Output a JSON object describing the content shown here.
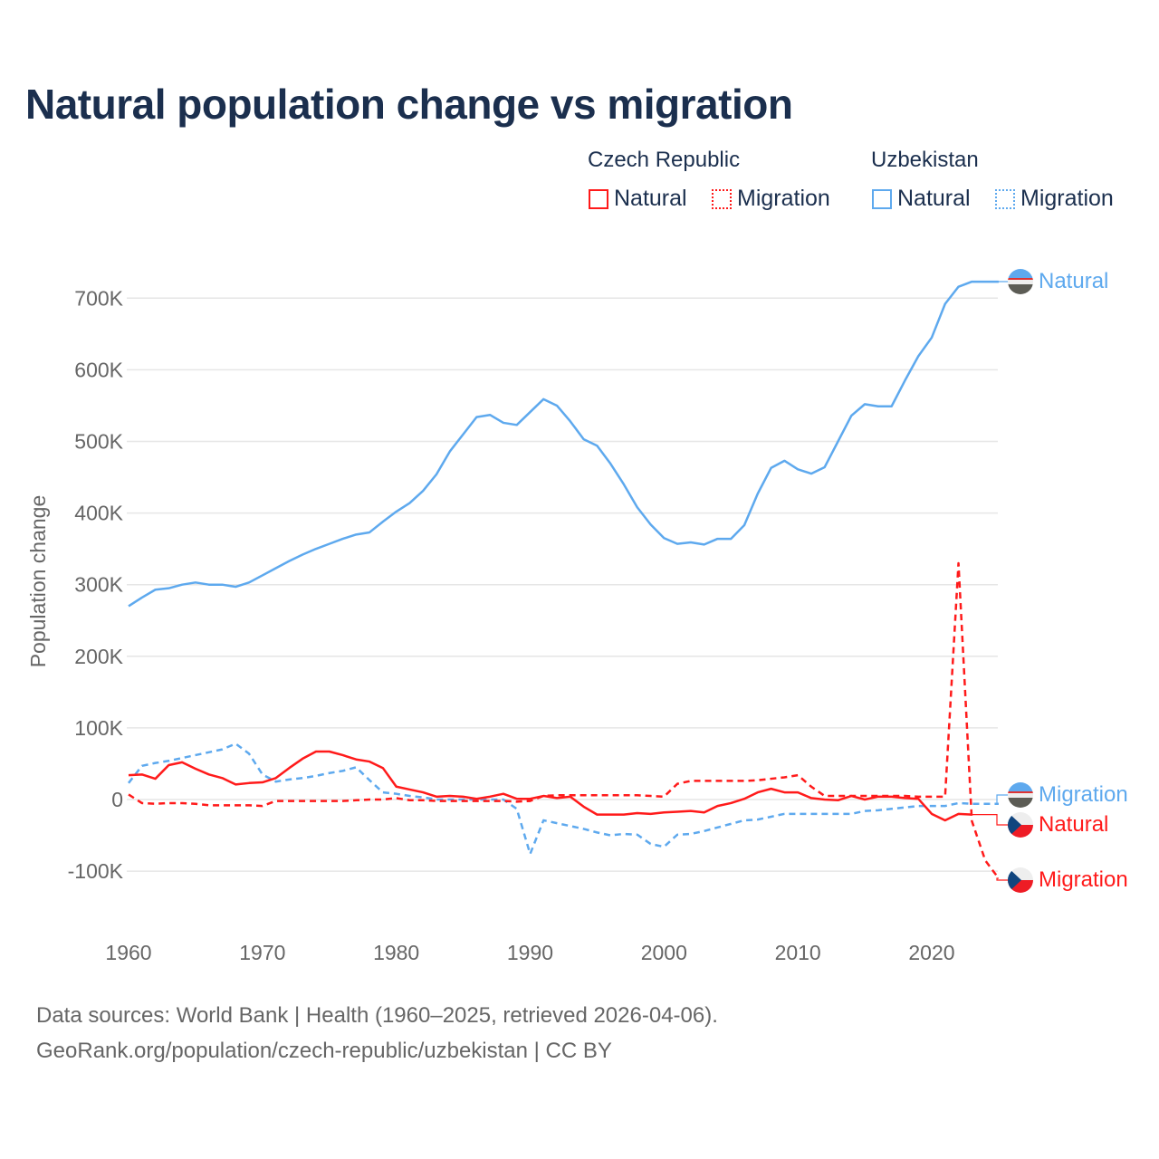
{
  "title": "Natural population change vs migration",
  "legend": {
    "groups": [
      {
        "name": "Czech Republic",
        "items": [
          {
            "label": "Natural",
            "style": "solid"
          },
          {
            "label": "Migration",
            "style": "dotted"
          }
        ],
        "color": "#ff1a1a"
      },
      {
        "name": "Uzbekistan",
        "items": [
          {
            "label": "Natural",
            "style": "solid"
          },
          {
            "label": "Migration",
            "style": "dotted"
          }
        ],
        "color": "#5ea9ee"
      }
    ]
  },
  "footer": {
    "line1": "Data sources: World Bank | Health (1960–2025, retrieved 2026-04-06).",
    "line2": "GeoRank.org/population/czech-republic/uzbekistan | CC BY"
  },
  "chart_data": {
    "type": "line",
    "title": "Natural population change vs migration",
    "xlabel": "",
    "ylabel": "Population change",
    "xlim": [
      1960,
      2025
    ],
    "ylim": [
      -100000,
      700000
    ],
    "x_ticks": [
      "1960",
      "1970",
      "1980",
      "1990",
      "2000",
      "2010",
      "2020"
    ],
    "y_ticks": [
      {
        "v": -100000,
        "label": "-100K"
      },
      {
        "v": 0,
        "label": "0"
      },
      {
        "v": 100000,
        "label": "100K"
      },
      {
        "v": 200000,
        "label": "200K"
      },
      {
        "v": 300000,
        "label": "300K"
      },
      {
        "v": 400000,
        "label": "400K"
      },
      {
        "v": 500000,
        "label": "500K"
      },
      {
        "v": 600000,
        "label": "600K"
      },
      {
        "v": 700000,
        "label": "700K"
      }
    ],
    "grid": true,
    "legend_position": "top-right",
    "series": [
      {
        "name": "Uzbekistan Natural",
        "end_label": "Natural",
        "flag": "uzbekistan",
        "color": "#5ea9ee",
        "dash": "",
        "start": 1960,
        "values_k": [
          270,
          282,
          293,
          295,
          300,
          303,
          300,
          300,
          297,
          303,
          313,
          323,
          333,
          342,
          350,
          357,
          364,
          370,
          373,
          388,
          402,
          414,
          431,
          454,
          486,
          510,
          534,
          537,
          526,
          523,
          541,
          559,
          550,
          528,
          503,
          494,
          469,
          440,
          408,
          384,
          365,
          357,
          359,
          356,
          364,
          364,
          383,
          427,
          463,
          473,
          461,
          455,
          464,
          500,
          536,
          552,
          549,
          549,
          585,
          619,
          645,
          692,
          716,
          723,
          723,
          723
        ]
      },
      {
        "name": "Uzbekistan Migration",
        "end_label": "Migration",
        "flag": "uzbekistan",
        "color": "#5ea9ee",
        "dash": "7,5",
        "start": 1960,
        "values_k": [
          23,
          47,
          51,
          54,
          58,
          62,
          66,
          70,
          78,
          64,
          35,
          25,
          28,
          30,
          33,
          37,
          40,
          45,
          27,
          10,
          8,
          5,
          3,
          0,
          0,
          0,
          0,
          0,
          0,
          -13,
          -76,
          -29,
          -33,
          -37,
          -41,
          -46,
          -50,
          -48,
          -49,
          -62,
          -66,
          -49,
          -48,
          -44,
          -39,
          -34,
          -29,
          -28,
          -24,
          -20,
          -20,
          -20,
          -20,
          -20,
          -20,
          -16,
          -15,
          -13,
          -11,
          -9,
          -9,
          -9,
          -5,
          -6,
          -6,
          -6
        ]
      },
      {
        "name": "Czech Republic Natural",
        "end_label": "Natural",
        "flag": "czech",
        "color": "#ff1a1a",
        "dash": "",
        "start": 1960,
        "values_k": [
          34,
          35,
          29,
          48,
          52,
          43,
          35,
          30,
          21,
          23,
          24,
          30,
          44,
          57,
          67,
          67,
          62,
          56,
          53,
          44,
          18,
          14,
          10,
          4,
          5,
          4,
          1,
          4,
          8,
          1,
          1,
          5,
          2,
          4,
          -10,
          -21,
          -21,
          -21,
          -19,
          -20,
          -18,
          -17,
          -16,
          -18,
          -9,
          -5,
          1,
          10,
          15,
          10,
          10,
          2,
          0,
          -1,
          5,
          0,
          4,
          4,
          2,
          1,
          -20,
          -29,
          -20,
          -21
        ]
      },
      {
        "name": "Czech Republic Migration",
        "end_label": "Migration",
        "flag": "czech",
        "color": "#ff1a1a",
        "dash": "7,5",
        "start": 1960,
        "values_k": [
          7,
          -5,
          -6,
          -5,
          -5,
          -6,
          -8,
          -8,
          -8,
          -8,
          -9,
          -2,
          -2,
          -2,
          -2,
          -2,
          -2,
          -1,
          0,
          0,
          2,
          -1,
          -1,
          -2,
          -2,
          -2,
          -2,
          -2,
          -2,
          -3,
          -2,
          5,
          6,
          6,
          6,
          6,
          6,
          6,
          6,
          5,
          4,
          22,
          26,
          26,
          26,
          26,
          26,
          27,
          29,
          31,
          34,
          18,
          5,
          5,
          5,
          5,
          5,
          5,
          5,
          4,
          4,
          4,
          330,
          -30,
          -85,
          -110
        ]
      }
    ]
  }
}
